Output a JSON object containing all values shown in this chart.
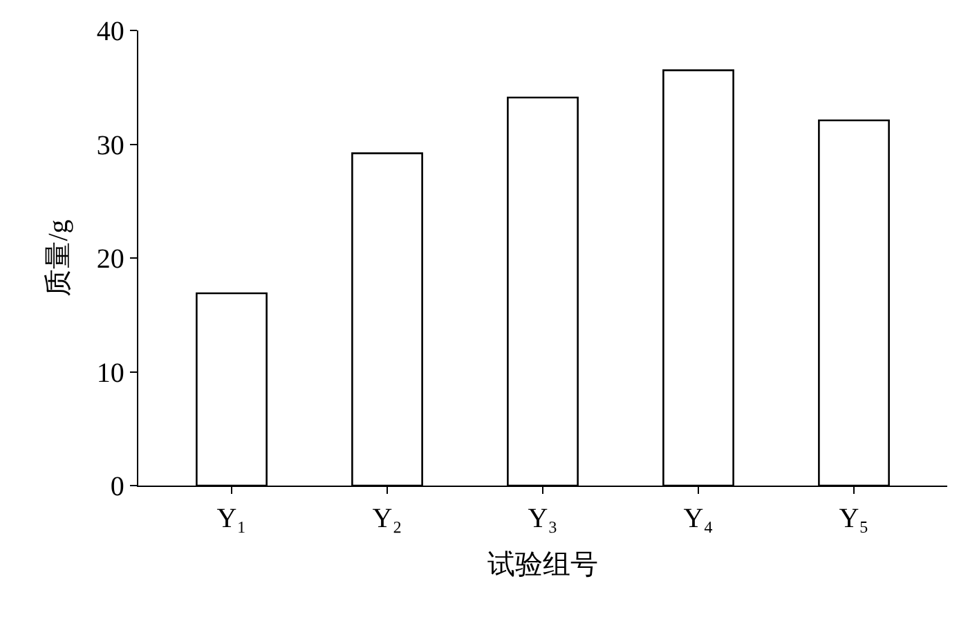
{
  "chart_data": {
    "type": "bar",
    "xlabel": "试验组号",
    "ylabel": "质量/g",
    "categories": [
      "Y₁",
      "Y₂",
      "Y₃",
      "Y₄",
      "Y₅"
    ],
    "values": [
      16.9,
      29.2,
      34.1,
      36.5,
      32.1
    ],
    "color": "#ffffff",
    "ylim": [
      0,
      40
    ],
    "yticks": [
      0,
      10,
      20,
      30,
      40
    ]
  }
}
